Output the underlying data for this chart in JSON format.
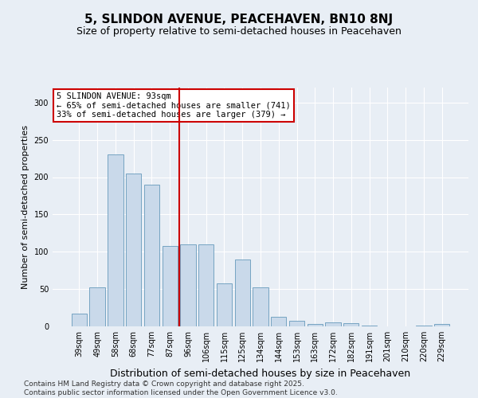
{
  "title": "5, SLINDON AVENUE, PEACEHAVEN, BN10 8NJ",
  "subtitle": "Size of property relative to semi-detached houses in Peacehaven",
  "xlabel": "Distribution of semi-detached houses by size in Peacehaven",
  "ylabel": "Number of semi-detached properties",
  "categories": [
    "39sqm",
    "49sqm",
    "58sqm",
    "68sqm",
    "77sqm",
    "87sqm",
    "96sqm",
    "106sqm",
    "115sqm",
    "125sqm",
    "134sqm",
    "144sqm",
    "153sqm",
    "163sqm",
    "172sqm",
    "182sqm",
    "191sqm",
    "201sqm",
    "210sqm",
    "220sqm",
    "229sqm"
  ],
  "values": [
    17,
    52,
    230,
    205,
    190,
    108,
    110,
    110,
    58,
    90,
    52,
    13,
    8,
    3,
    5,
    4,
    1,
    0,
    0,
    1,
    3
  ],
  "bar_color": "#c9d9ea",
  "bar_edge_color": "#6699bb",
  "vline_color": "#cc0000",
  "vline_x_index": 6,
  "annotation_title": "5 SLINDON AVENUE: 93sqm",
  "annotation_line1": "← 65% of semi-detached houses are smaller (741)",
  "annotation_line2": "33% of semi-detached houses are larger (379) →",
  "annotation_box_color": "white",
  "annotation_box_edge_color": "#cc0000",
  "ylim": [
    0,
    320
  ],
  "yticks": [
    0,
    50,
    100,
    150,
    200,
    250,
    300
  ],
  "footer_line1": "Contains HM Land Registry data © Crown copyright and database right 2025.",
  "footer_line2": "Contains public sector information licensed under the Open Government Licence v3.0.",
  "background_color": "#e8eef5",
  "plot_background_color": "#e8eef5",
  "title_fontsize": 11,
  "subtitle_fontsize": 9,
  "ylabel_fontsize": 8,
  "xlabel_fontsize": 9,
  "footer_fontsize": 6.5,
  "tick_fontsize": 7
}
